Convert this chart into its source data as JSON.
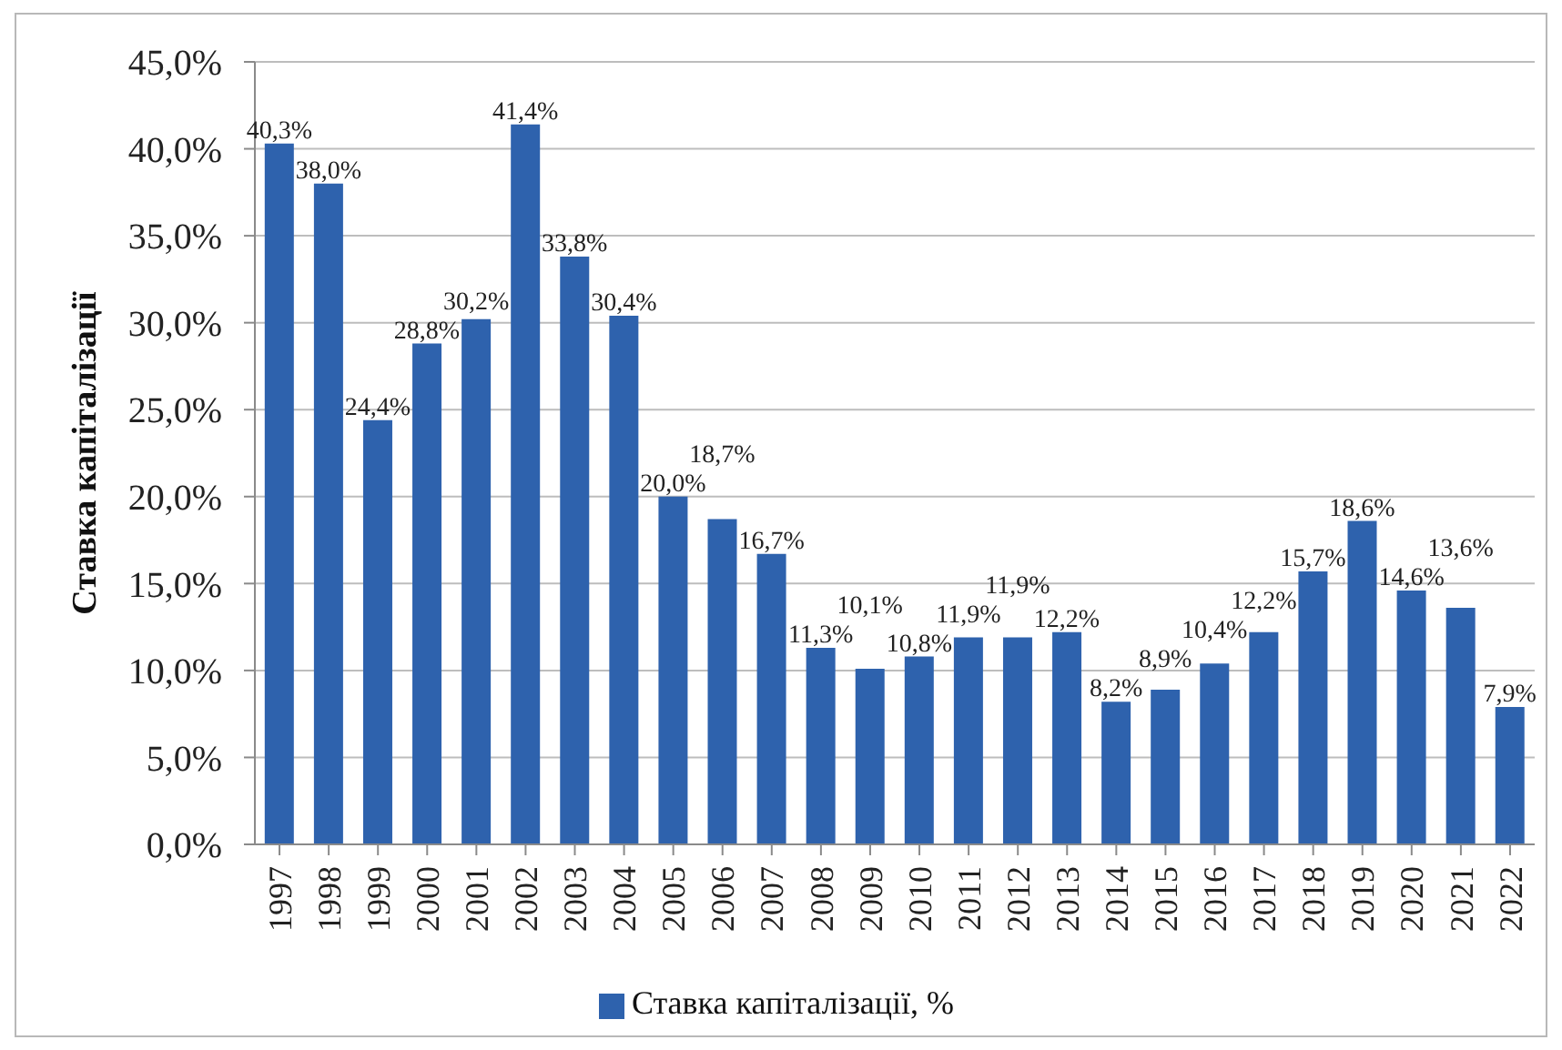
{
  "chart_data": {
    "type": "bar",
    "ylabel": "Ставка капіталізації",
    "categories": [
      "1997",
      "1998",
      "1999",
      "2000",
      "2001",
      "2002",
      "2003",
      "2004",
      "2005",
      "2006",
      "2007",
      "2008",
      "2009",
      "2010",
      "2011",
      "2012",
      "2013",
      "2014",
      "2015",
      "2016",
      "2017",
      "2018",
      "2019",
      "2020",
      "2021",
      "2022"
    ],
    "series": [
      {
        "name": "Ставка капіталізації, %",
        "color": "#2e62ad",
        "values": [
          40.3,
          38.0,
          24.4,
          28.8,
          30.2,
          41.4,
          33.8,
          30.4,
          20.0,
          18.7,
          16.7,
          11.3,
          10.1,
          10.8,
          11.9,
          11.9,
          12.2,
          8.2,
          8.9,
          10.4,
          12.2,
          15.7,
          18.6,
          14.6,
          13.6,
          7.9
        ],
        "value_labels": [
          "40,3%",
          "38,0%",
          "24,4%",
          "28,8%",
          "30,2%",
          "41,4%",
          "33,8%",
          "30,4%",
          "20,0%",
          "18,7%",
          "16,7%",
          "11,3%",
          "10,1%",
          "10,8%",
          "11,9%",
          "11,9%",
          "12,2%",
          "8,2%",
          "8,9%",
          "10,4%",
          "12,2%",
          "15,7%",
          "18,6%",
          "14,6%",
          "13,6%",
          "7,9%"
        ]
      }
    ],
    "ylim": [
      0,
      45
    ],
    "yticks": [
      {
        "value": 0,
        "label": "0,0%"
      },
      {
        "value": 5,
        "label": "5,0%"
      },
      {
        "value": 10,
        "label": "10,0%"
      },
      {
        "value": 15,
        "label": "15,0%"
      },
      {
        "value": 20,
        "label": "20,0%"
      },
      {
        "value": 25,
        "label": "25,0%"
      },
      {
        "value": 30,
        "label": "30,0%"
      },
      {
        "value": 35,
        "label": "35,0%"
      },
      {
        "value": 40,
        "label": "40,0%"
      },
      {
        "value": 45,
        "label": "45,0%"
      }
    ],
    "grid": "y",
    "legend": "bottom"
  }
}
